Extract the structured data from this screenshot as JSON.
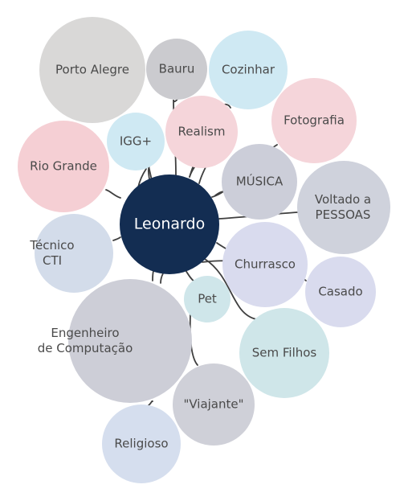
{
  "center": {
    "label": "Leonardo",
    "color": "#132d52"
  },
  "nodes": [
    {
      "id": "porto-alegre",
      "lines": [
        "Porto Alegre"
      ],
      "color": "#d9d8d7"
    },
    {
      "id": "bauru",
      "lines": [
        "Bauru"
      ],
      "color": "#cbcbcf"
    },
    {
      "id": "cozinhar",
      "lines": [
        "Cozinhar"
      ],
      "color": "#cfe9f3"
    },
    {
      "id": "igg",
      "lines": [
        "IGG+"
      ],
      "color": "#cfe9f3"
    },
    {
      "id": "realism",
      "lines": [
        "Realism"
      ],
      "color": "#f5d5da"
    },
    {
      "id": "fotografia",
      "lines": [
        "Fotografia"
      ],
      "color": "#f5d5da"
    },
    {
      "id": "rio-grande",
      "lines": [
        "Rio Grande"
      ],
      "color": "#f5cfd4"
    },
    {
      "id": "musica",
      "lines": [
        "MÚSICA"
      ],
      "color": "#ccced9"
    },
    {
      "id": "voltado",
      "lines": [
        "Voltado a",
        "PESSOAS"
      ],
      "color": "#cfd2dc"
    },
    {
      "id": "tecnico",
      "lines": [
        "Técnico",
        "CTI"
      ],
      "color": "#d3dcea"
    },
    {
      "id": "churrasco",
      "lines": [
        "Churrasco"
      ],
      "color": "#d9dbee"
    },
    {
      "id": "casado",
      "lines": [
        "Casado"
      ],
      "color": "#d9dbee"
    },
    {
      "id": "pet",
      "lines": [
        "Pet"
      ],
      "color": "#cfe6ea"
    },
    {
      "id": "engenheiro",
      "lines": [
        "Engenheiro",
        "de Computação"
      ],
      "color": "#cdced7"
    },
    {
      "id": "sem-filhos",
      "lines": [
        "Sem Filhos"
      ],
      "color": "#cfe6e9"
    },
    {
      "id": "viajante",
      "lines": [
        "\"Viajante\""
      ],
      "color": "#cfd0d8"
    },
    {
      "id": "religioso",
      "lines": [
        "Religioso"
      ],
      "color": "#d5deee"
    }
  ]
}
